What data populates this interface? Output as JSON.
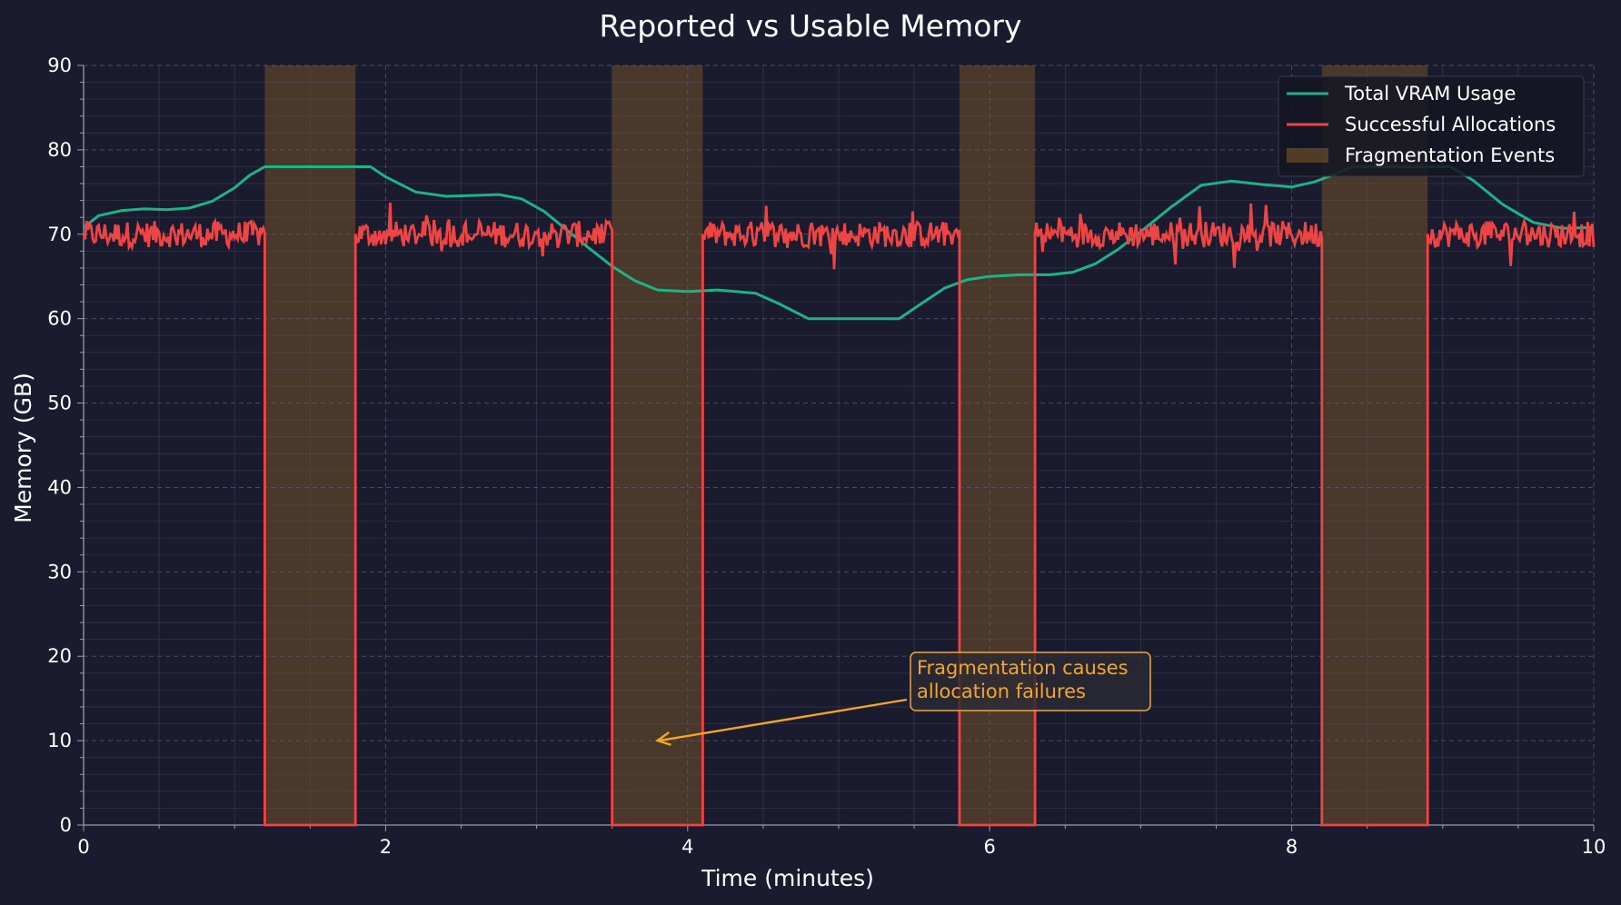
{
  "chart_data": {
    "type": "line",
    "title": "Reported vs Usable Memory",
    "xlabel": "Time (minutes)",
    "ylabel": "Memory (GB)",
    "xlim": [
      0,
      10
    ],
    "ylim": [
      0,
      90
    ],
    "xticks": [
      0,
      2,
      4,
      6,
      8,
      10
    ],
    "yticks": [
      0,
      10,
      20,
      30,
      40,
      50,
      60,
      70,
      80,
      90
    ],
    "grid": true,
    "legend_position": "top-right",
    "colors": {
      "background": "#1a1b2e",
      "total_vram": "#1db386",
      "successful_allocations": "#ef4444",
      "fragmentation_fill": "#6b4f2a",
      "annotation": "#f5a623",
      "grid": "#5a5c78",
      "axis": "#9a9cb0",
      "text": "#ffffff"
    },
    "series": [
      {
        "name": "Total VRAM Usage",
        "x": [
          0,
          0.1,
          0.25,
          0.4,
          0.55,
          0.7,
          0.85,
          1.0,
          1.1,
          1.2,
          1.28,
          1.4,
          1.6,
          1.8,
          1.9,
          2.0,
          2.2,
          2.4,
          2.6,
          2.75,
          2.9,
          3.05,
          3.2,
          3.35,
          3.5,
          3.65,
          3.8,
          4.0,
          4.2,
          4.45,
          4.6,
          4.8,
          5.0,
          5.2,
          5.4,
          5.55,
          5.7,
          5.85,
          6.0,
          6.2,
          6.4,
          6.55,
          6.7,
          6.85,
          7.0,
          7.2,
          7.4,
          7.6,
          7.8,
          8.0,
          8.15,
          8.3,
          8.4,
          8.6,
          8.8,
          8.9,
          9.05,
          9.2,
          9.4,
          9.6,
          9.8,
          10.0
        ],
        "y": [
          70.8,
          72.2,
          72.8,
          73.0,
          72.9,
          73.1,
          73.9,
          75.5,
          77.0,
          78.0,
          78.0,
          78.0,
          78.0,
          78.0,
          78.0,
          76.8,
          75.0,
          74.5,
          74.6,
          74.7,
          74.2,
          72.7,
          70.5,
          68.3,
          66.2,
          64.5,
          63.4,
          63.2,
          63.4,
          63.0,
          61.8,
          60.0,
          60.0,
          60.0,
          60.0,
          61.8,
          63.6,
          64.6,
          65.0,
          65.2,
          65.2,
          65.5,
          66.5,
          68.2,
          70.3,
          73.2,
          75.8,
          76.3,
          75.9,
          75.6,
          76.2,
          77.2,
          78.0,
          78.0,
          78.0,
          78.0,
          78.0,
          76.4,
          73.5,
          71.4,
          70.7,
          70.8
        ]
      },
      {
        "name": "Successful Allocations",
        "baseline": 70,
        "noise_amplitude": 2.6,
        "x": [
          0,
          1.2,
          1.2,
          1.8,
          1.8,
          3.5,
          3.5,
          4.1,
          4.1,
          5.8,
          5.8,
          6.3,
          6.3,
          8.2,
          8.2,
          8.9,
          8.9,
          10.0
        ],
        "y": [
          70,
          70,
          0,
          0,
          70,
          70,
          0,
          0,
          70,
          70,
          0,
          0,
          70,
          70,
          0,
          0,
          70,
          70
        ]
      }
    ],
    "fragmentation_events": {
      "name": "Fragmentation Events",
      "spans": [
        [
          1.2,
          1.8
        ],
        [
          3.5,
          4.1
        ],
        [
          5.8,
          6.3
        ],
        [
          8.2,
          8.9
        ]
      ]
    },
    "annotation": {
      "text_lines": [
        "Fragmentation causes",
        "allocation failures"
      ],
      "arrow_target": [
        3.8,
        10
      ]
    }
  }
}
